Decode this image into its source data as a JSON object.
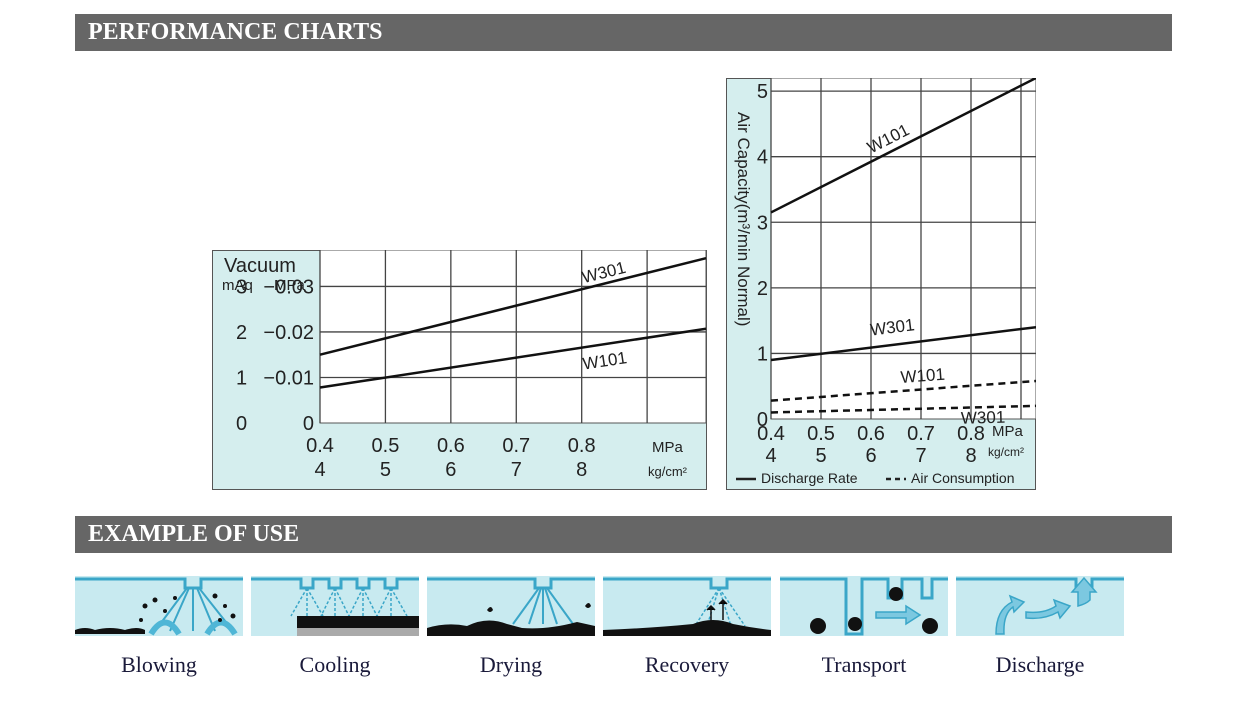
{
  "headings": {
    "performance": "PERFORMANCE CHARTS",
    "example": "EXAMPLE OF USE"
  },
  "colors": {
    "bar": "#666666",
    "chart_bg": "#d5eeee",
    "water": "#c8eaf0",
    "accent": "#3aa6c8"
  },
  "chart_data": [
    {
      "type": "line",
      "title": "Vacuum",
      "ylabel_units": [
        "mAq",
        "MPa"
      ],
      "xlabel_units": [
        "MPa",
        "kg/cm²"
      ],
      "x_ticks_mpa": [
        "0.4",
        "0.5",
        "0.6",
        "0.7",
        "0.8"
      ],
      "x_ticks_kgcm2": [
        "4",
        "5",
        "6",
        "7",
        "8"
      ],
      "y_ticks_maq": [
        "3",
        "2",
        "1",
        "0"
      ],
      "y_ticks_mpa": [
        "−0.03",
        "−0.02",
        "−0.01",
        "0"
      ],
      "xlim": [
        0.4,
        0.99
      ],
      "ylim": [
        0,
        3.8
      ],
      "series": [
        {
          "name": "W301",
          "x": [
            0.4,
            0.99
          ],
          "y": [
            1.5,
            3.62
          ]
        },
        {
          "name": "W101",
          "x": [
            0.4,
            0.99
          ],
          "y": [
            0.78,
            2.07
          ]
        }
      ]
    },
    {
      "type": "line",
      "ylabel": "Air Capacity(m³/min Normal)",
      "xlabel_units": [
        "MPa",
        "kg/cm²"
      ],
      "x_ticks_mpa": [
        "0.4",
        "0.5",
        "0.6",
        "0.7",
        "0.8"
      ],
      "x_ticks_kgcm2": [
        "4",
        "5",
        "6",
        "7",
        "8"
      ],
      "y_ticks": [
        "0",
        "1",
        "2",
        "3",
        "4",
        "5"
      ],
      "xlim": [
        0.4,
        0.93
      ],
      "ylim": [
        0,
        5.2
      ],
      "legend": [
        {
          "label": "Discharge Rate",
          "style": "solid"
        },
        {
          "label": "Air Consumption",
          "style": "dashed"
        }
      ],
      "series": [
        {
          "name": "W101",
          "style": "solid",
          "x": [
            0.4,
            0.93
          ],
          "y": [
            3.15,
            5.2
          ]
        },
        {
          "name": "W301",
          "style": "solid",
          "x": [
            0.4,
            0.93
          ],
          "y": [
            0.9,
            1.4
          ]
        },
        {
          "name": "W101",
          "style": "dashed",
          "x": [
            0.4,
            0.93
          ],
          "y": [
            0.28,
            0.58
          ]
        },
        {
          "name": "W301",
          "style": "dashed",
          "x": [
            0.4,
            0.93
          ],
          "y": [
            0.1,
            0.2
          ]
        }
      ]
    }
  ],
  "uses": [
    {
      "label": "Blowing",
      "icon": "blowing-illustration"
    },
    {
      "label": "Cooling",
      "icon": "cooling-illustration"
    },
    {
      "label": "Drying",
      "icon": "drying-illustration"
    },
    {
      "label": "Recovery",
      "icon": "recovery-illustration"
    },
    {
      "label": "Transport",
      "icon": "transport-illustration"
    },
    {
      "label": "Discharge",
      "icon": "discharge-illustration"
    }
  ]
}
